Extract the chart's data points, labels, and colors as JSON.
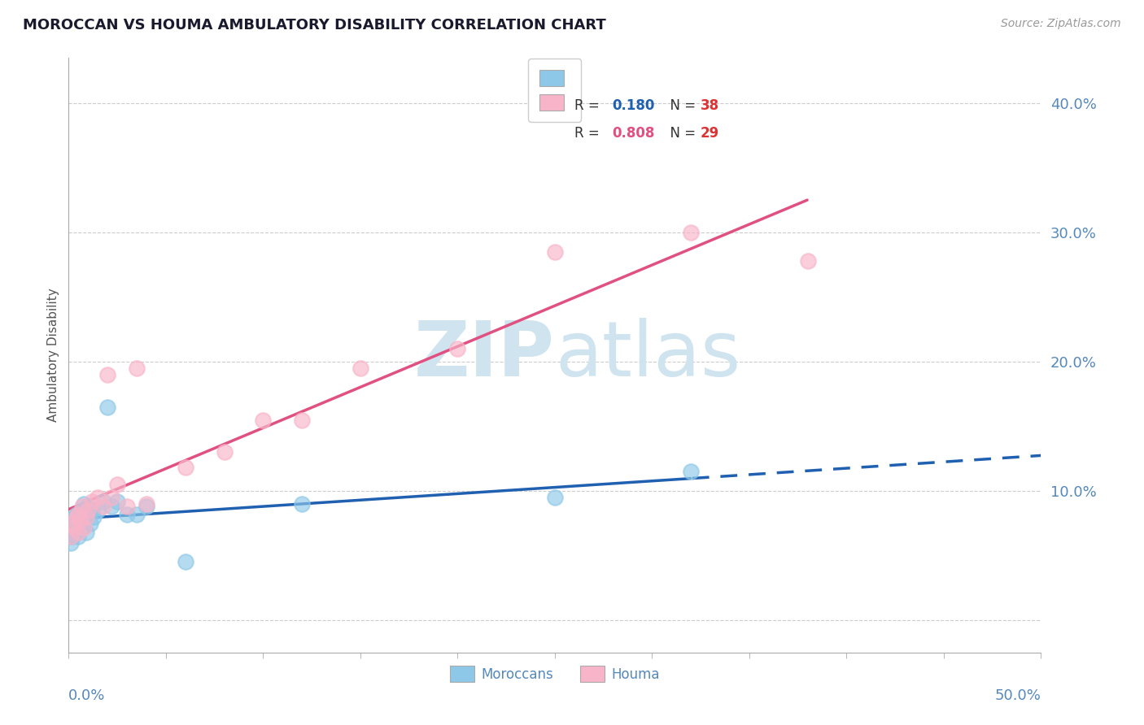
{
  "title": "MOROCCAN VS HOUMA AMBULATORY DISABILITY CORRELATION CHART",
  "source": "Source: ZipAtlas.com",
  "xlim": [
    0.0,
    0.5
  ],
  "ylim": [
    -0.025,
    0.435
  ],
  "ylabel_ticks": [
    0.0,
    0.1,
    0.2,
    0.3,
    0.4
  ],
  "ylabel_labels": [
    "",
    "10.0%",
    "20.0%",
    "30.0%",
    "40.0%"
  ],
  "moroccan_x": [
    0.001,
    0.001,
    0.001,
    0.002,
    0.002,
    0.002,
    0.003,
    0.003,
    0.003,
    0.004,
    0.004,
    0.005,
    0.005,
    0.005,
    0.006,
    0.006,
    0.007,
    0.007,
    0.008,
    0.008,
    0.009,
    0.01,
    0.01,
    0.011,
    0.012,
    0.013,
    0.015,
    0.018,
    0.02,
    0.022,
    0.025,
    0.03,
    0.035,
    0.04,
    0.06,
    0.12,
    0.25,
    0.32
  ],
  "moroccan_y": [
    0.06,
    0.065,
    0.07,
    0.065,
    0.072,
    0.078,
    0.068,
    0.075,
    0.08,
    0.072,
    0.082,
    0.065,
    0.07,
    0.078,
    0.075,
    0.082,
    0.072,
    0.085,
    0.078,
    0.09,
    0.068,
    0.082,
    0.088,
    0.075,
    0.085,
    0.08,
    0.085,
    0.092,
    0.165,
    0.088,
    0.092,
    0.082,
    0.082,
    0.088,
    0.045,
    0.09,
    0.095,
    0.115
  ],
  "houma_x": [
    0.001,
    0.002,
    0.003,
    0.004,
    0.005,
    0.005,
    0.006,
    0.007,
    0.008,
    0.009,
    0.01,
    0.012,
    0.015,
    0.018,
    0.02,
    0.022,
    0.025,
    0.03,
    0.035,
    0.04,
    0.06,
    0.08,
    0.1,
    0.12,
    0.15,
    0.2,
    0.25,
    0.32,
    0.38
  ],
  "houma_y": [
    0.065,
    0.075,
    0.072,
    0.08,
    0.068,
    0.082,
    0.078,
    0.088,
    0.072,
    0.08,
    0.085,
    0.092,
    0.095,
    0.088,
    0.19,
    0.095,
    0.105,
    0.088,
    0.195,
    0.09,
    0.118,
    0.13,
    0.155,
    0.155,
    0.195,
    0.21,
    0.285,
    0.3,
    0.278
  ],
  "moroccan_color": "#8ec8e8",
  "houma_color": "#f8b4c8",
  "moroccan_line_color": "#2060b0",
  "houma_line_color": "#e05080",
  "moroccan_R": 0.18,
  "moroccan_N": 38,
  "houma_R": 0.808,
  "houma_N": 29,
  "watermark_zip": "ZIP",
  "watermark_atlas": "atlas",
  "watermark_color": "#d0e4f0",
  "background_color": "#ffffff",
  "grid_color": "#cccccc",
  "title_color": "#1a1a2e",
  "tick_color": "#5588bb",
  "ylabel_text": "Ambulatory Disability"
}
